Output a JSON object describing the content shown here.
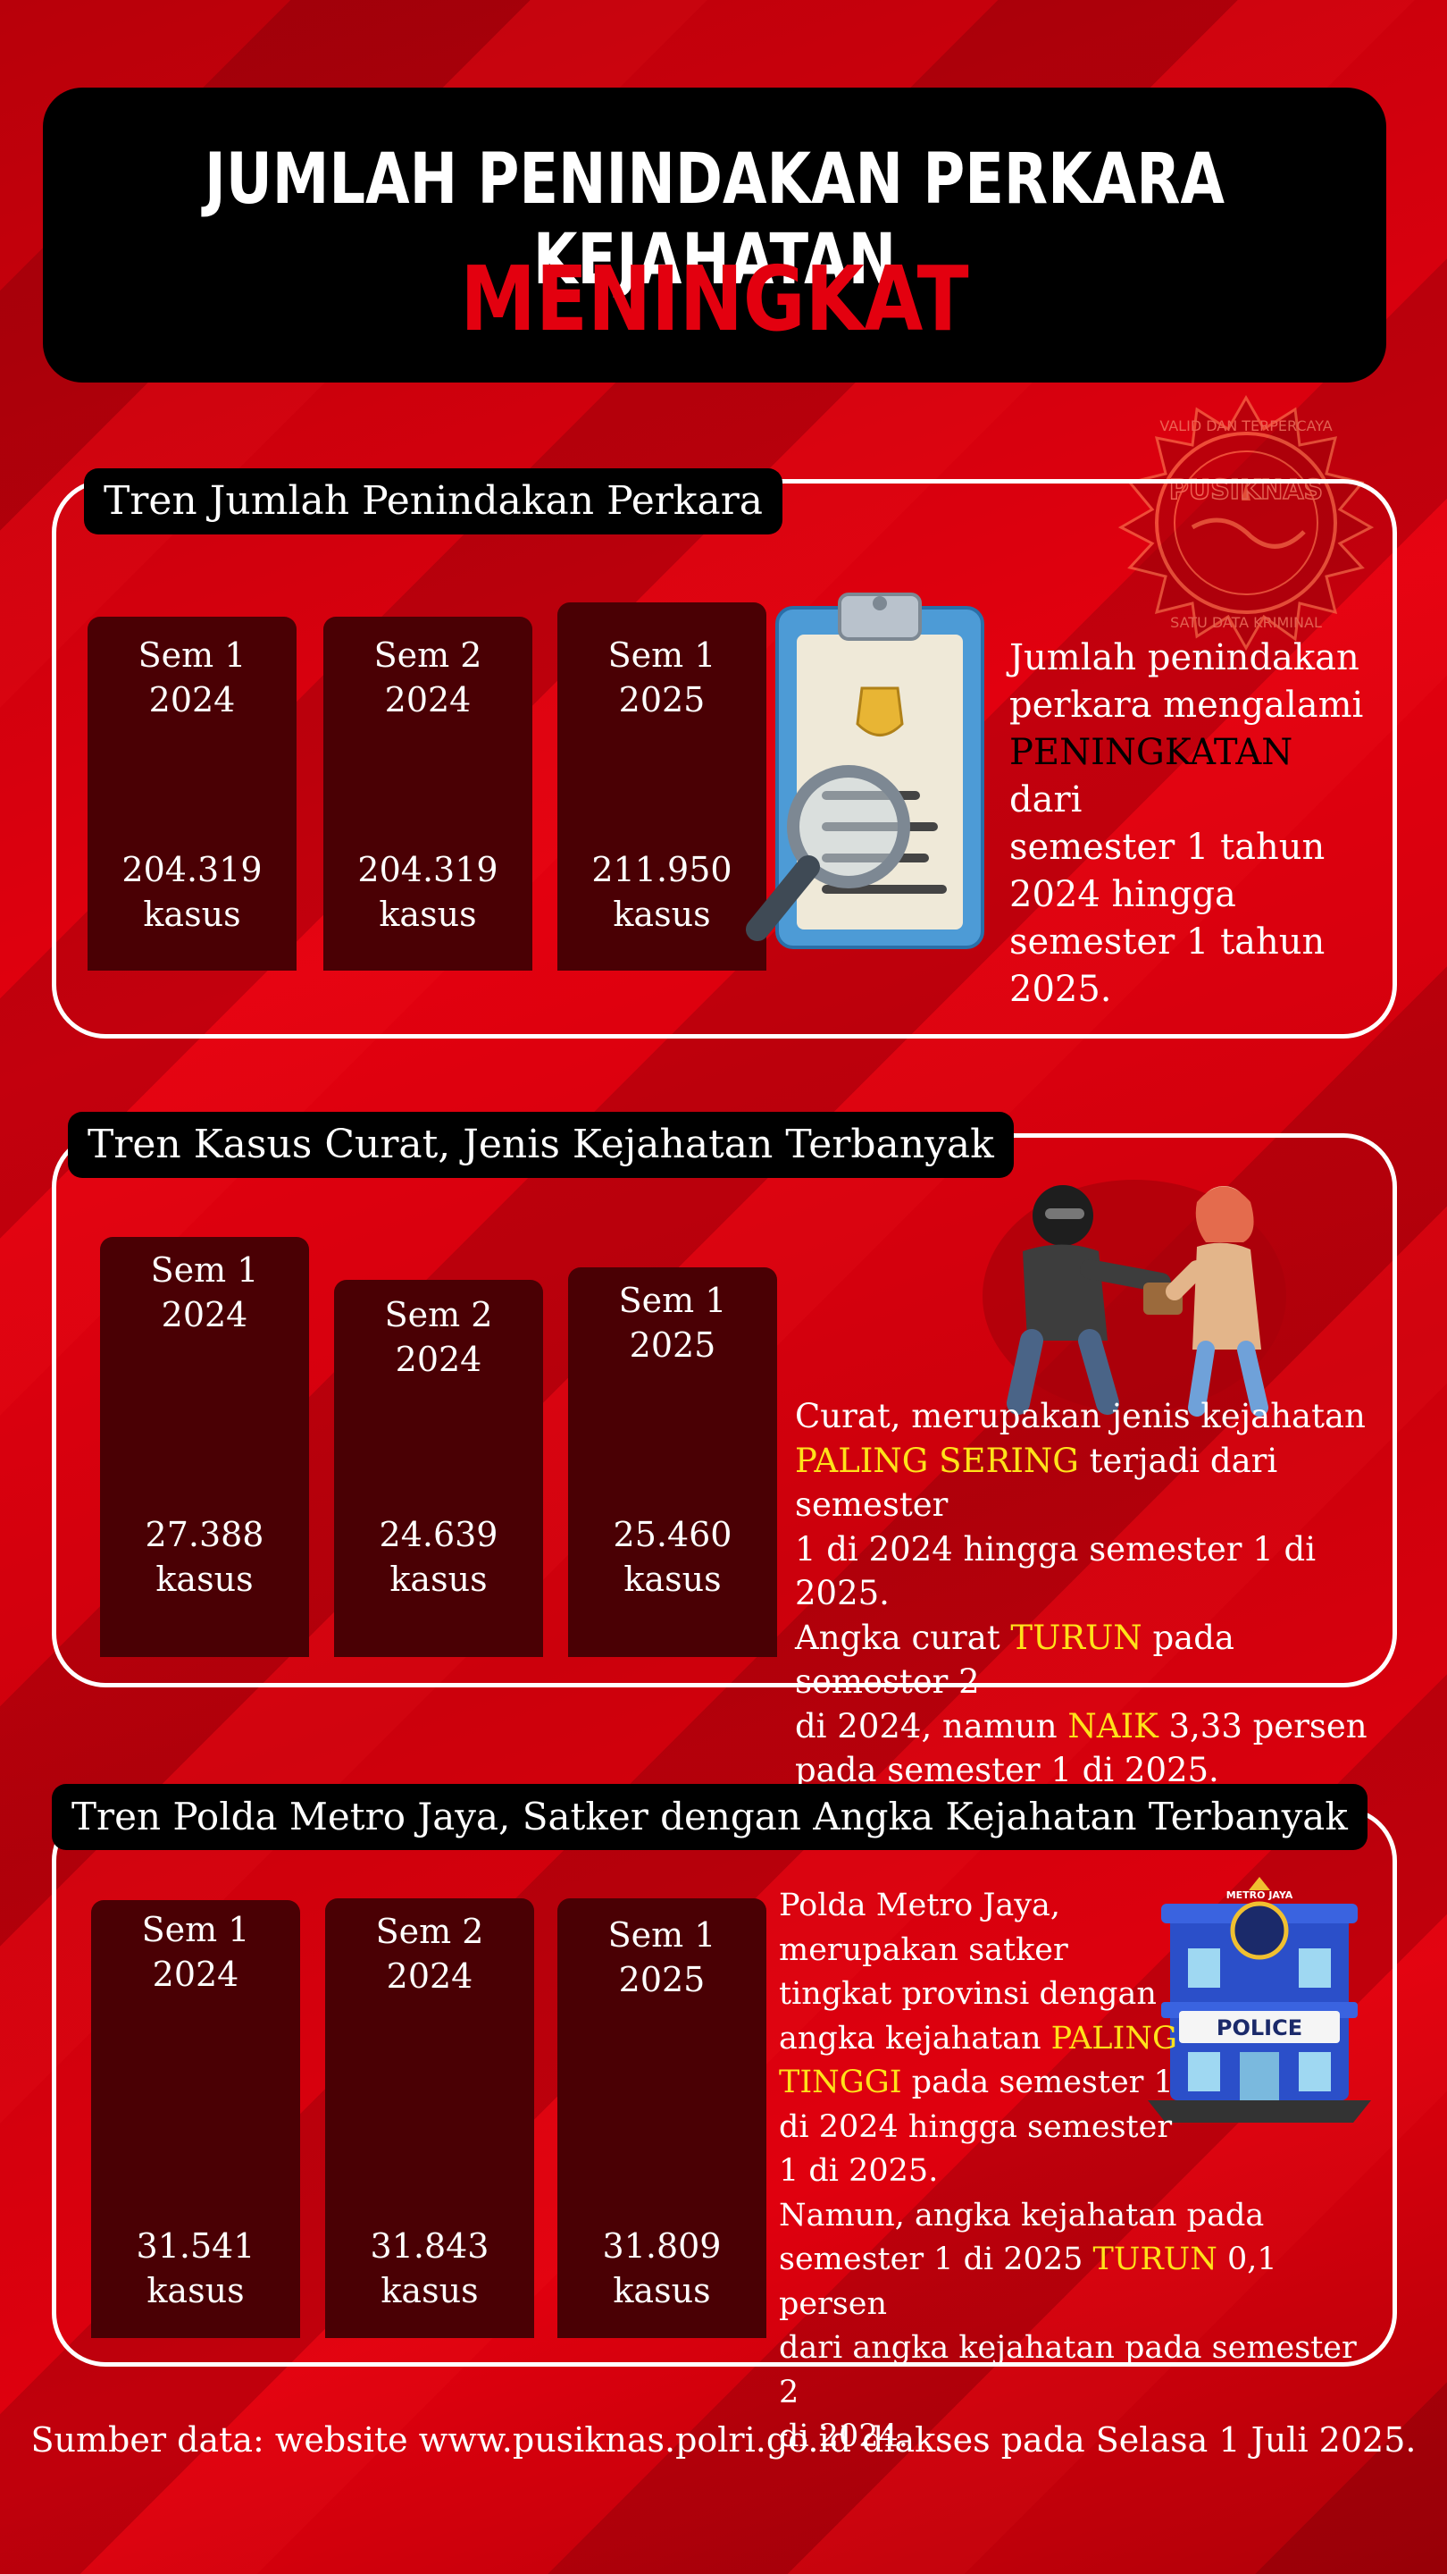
{
  "title": {
    "line1": "JUMLAH PENINDAKAN PERKARA KEJAHATAN",
    "line2": "MENINGKAT"
  },
  "watermark": {
    "text_top": "VALID DAN TERPERCAYA",
    "text_center": "PUSIKNAS",
    "text_bottom": "SATU DATA KRIMINAL"
  },
  "section1": {
    "label": "Tren Jumlah Penindakan Perkara",
    "bars": [
      {
        "period_line1": "Sem 1",
        "period_line2": "2024",
        "value": "204.319",
        "unit": "kasus"
      },
      {
        "period_line1": "Sem 2",
        "period_line2": "2024",
        "value": "204.319",
        "unit": "kasus"
      },
      {
        "period_line1": "Sem 1",
        "period_line2": "2025",
        "value": "211.950",
        "unit": "kasus"
      }
    ],
    "desc": {
      "l1": "Jumlah penindakan",
      "l2": "perkara mengalami",
      "l3_hl": "PENINGKATAN",
      "l3_rest": " dari",
      "l4": "semester 1 tahun",
      "l5": "2024 hingga",
      "l6": "semester 1 tahun",
      "l7": "2025."
    },
    "icon": "clipboard-magnifier-icon"
  },
  "section2": {
    "label": "Tren Kasus Curat, Jenis Kejahatan Terbanyak",
    "bars": [
      {
        "period_line1": "Sem 1",
        "period_line2": "2024",
        "value": "27.388",
        "unit": "kasus"
      },
      {
        "period_line1": "Sem 2",
        "period_line2": "2024",
        "value": "24.639",
        "unit": "kasus"
      },
      {
        "period_line1": "Sem 1",
        "period_line2": "2025",
        "value": "25.460",
        "unit": "kasus"
      }
    ],
    "desc": {
      "l1": "Curat, merupakan jenis kejahatan",
      "l2_hl": "PALING SERING",
      "l2_rest": " terjadi dari semester",
      "l3": "1 di 2024 hingga semester 1 di 2025.",
      "l4_a": "Angka curat ",
      "l4_hl": "TURUN",
      "l4_rest": " pada semester 2",
      "l5_a": "di 2024, namun ",
      "l5_hl": "NAIK",
      "l5_rest": " 3,33 persen",
      "l6": "pada semester 1 di 2025."
    },
    "icon": "thief-robbery-icon"
  },
  "section3": {
    "label": "Tren Polda Metro Jaya, Satker dengan Angka Kejahatan Terbanyak",
    "bars": [
      {
        "period_line1": "Sem 1",
        "period_line2": "2024",
        "value": "31.541",
        "unit": "kasus"
      },
      {
        "period_line1": "Sem 2",
        "period_line2": "2024",
        "value": "31.843",
        "unit": "kasus"
      },
      {
        "period_line1": "Sem 1",
        "period_line2": "2025",
        "value": "31.809",
        "unit": "kasus"
      }
    ],
    "desc": {
      "l1": "Polda Metro Jaya,",
      "l2": "merupakan satker",
      "l3": "tingkat provinsi dengan",
      "l4_a": "angka kejahatan ",
      "l4_hl": "PALING",
      "l5_hl": "TINGGI",
      "l5_rest": " pada semester 1",
      "l6": "di 2024 hingga semester",
      "l7": "1 di 2025.",
      "l8": "Namun, angka kejahatan pada",
      "l9_a": "semester 1 di 2025 ",
      "l9_hl": "TURUN",
      "l9_rest": " 0,1 persen",
      "l10": "dari angka kejahatan pada semester 2",
      "l11": "di 2024."
    },
    "icon": "police-station-icon",
    "building_sign": "POLICE",
    "building_top": "METRO JAYA"
  },
  "source": "Sumber data: website www.pusiknas.polri.go.id diakses pada Selasa 1 Juli 2025.",
  "colors": {
    "background": "#d4000a",
    "bar": "#4a0004",
    "title_accent": "#e3000f",
    "highlight_yellow": "#ffe21a"
  }
}
